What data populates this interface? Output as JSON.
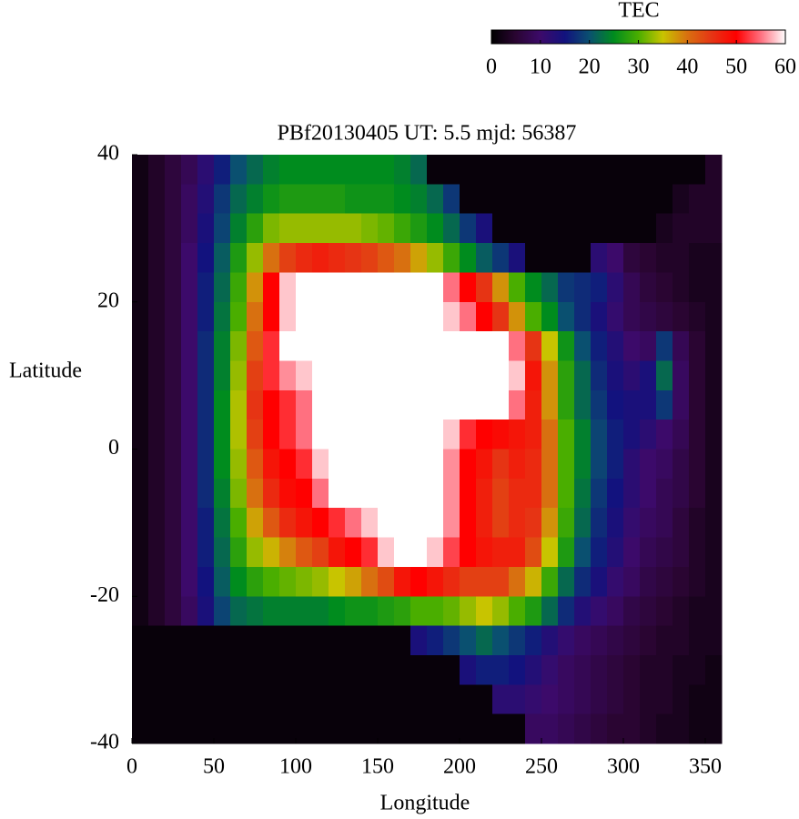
{
  "chart_data": {
    "type": "heatmap",
    "title": "PBf20130405  UT: 5.5  mjd: 56387",
    "x_label": "Longitude",
    "y_label": "Latitude",
    "colorbar_label": "TEC",
    "x": [
      5,
      15,
      25,
      35,
      45,
      55,
      65,
      75,
      85,
      95,
      105,
      115,
      125,
      135,
      145,
      155,
      165,
      175,
      185,
      195,
      205,
      215,
      225,
      235,
      245,
      255,
      265,
      275,
      285,
      295,
      305,
      315,
      325,
      335,
      345,
      355
    ],
    "y": [
      38,
      34,
      30,
      26,
      22,
      18,
      14,
      10,
      6,
      2,
      -2,
      -6,
      -10,
      -14,
      -18,
      -22,
      -26,
      -30,
      -34,
      -38
    ],
    "z": [
      [
        2,
        4,
        6,
        8,
        12,
        16,
        20,
        22,
        24,
        25,
        25,
        25,
        25,
        25,
        25,
        25,
        24,
        22,
        1,
        1,
        1,
        1,
        1,
        1,
        1,
        1,
        1,
        1,
        1,
        1,
        1,
        1,
        1,
        1,
        1,
        4
      ],
      [
        2,
        4,
        6,
        9,
        13,
        18,
        22,
        24,
        26,
        27,
        27,
        27,
        27,
        26,
        26,
        26,
        25,
        24,
        22,
        18,
        1,
        1,
        1,
        1,
        1,
        1,
        1,
        1,
        1,
        1,
        1,
        1,
        1,
        3,
        4,
        4
      ],
      [
        2,
        4,
        6,
        9,
        14,
        19,
        24,
        28,
        32,
        33,
        33,
        33,
        33,
        33,
        32,
        31,
        29,
        27,
        25,
        22,
        18,
        14,
        1,
        1,
        1,
        1,
        1,
        1,
        1,
        1,
        1,
        1,
        3,
        4,
        4,
        4
      ],
      [
        2,
        4,
        6,
        10,
        15,
        21,
        27,
        33,
        40,
        44,
        46,
        47,
        46,
        45,
        44,
        42,
        40,
        37,
        33,
        29,
        25,
        21,
        18,
        14,
        1,
        1,
        1,
        1,
        12,
        10,
        6,
        5,
        4,
        4,
        3,
        3
      ],
      [
        2,
        4,
        6,
        10,
        16,
        22,
        29,
        38,
        50,
        58,
        60,
        60,
        60,
        60,
        60,
        60,
        60,
        60,
        60,
        55,
        50,
        45,
        38,
        30,
        25,
        22,
        18,
        17,
        16,
        12,
        8,
        6,
        5,
        4,
        3,
        3
      ],
      [
        2,
        4,
        6,
        10,
        16,
        23,
        30,
        40,
        50,
        58,
        60,
        60,
        60,
        60,
        60,
        60,
        60,
        60,
        60,
        58,
        55,
        50,
        45,
        38,
        30,
        25,
        20,
        17,
        14,
        11,
        8,
        7,
        6,
        5,
        4,
        3
      ],
      [
        2,
        4,
        6,
        10,
        17,
        24,
        32,
        42,
        52,
        60,
        60,
        60,
        60,
        60,
        60,
        60,
        60,
        60,
        60,
        60,
        60,
        60,
        60,
        55,
        45,
        35,
        26,
        20,
        16,
        13,
        10,
        9,
        18,
        8,
        5,
        3
      ],
      [
        2,
        4,
        6,
        10,
        17,
        24,
        33,
        44,
        52,
        56,
        58,
        60,
        60,
        60,
        60,
        60,
        60,
        60,
        60,
        60,
        60,
        60,
        60,
        58,
        48,
        38,
        28,
        22,
        17,
        14,
        12,
        14,
        22,
        9,
        5,
        3
      ],
      [
        2,
        4,
        6,
        10,
        17,
        25,
        34,
        45,
        50,
        52,
        55,
        60,
        60,
        60,
        60,
        60,
        60,
        60,
        60,
        60,
        60,
        60,
        60,
        55,
        47,
        38,
        28,
        22,
        18,
        15,
        14,
        14,
        18,
        9,
        5,
        3
      ],
      [
        2,
        4,
        6,
        10,
        17,
        25,
        34,
        44,
        50,
        52,
        55,
        60,
        60,
        60,
        60,
        60,
        60,
        60,
        60,
        58,
        52,
        50,
        49,
        48,
        47,
        40,
        30,
        24,
        19,
        16,
        14,
        12,
        10,
        8,
        5,
        3
      ],
      [
        2,
        4,
        6,
        10,
        17,
        25,
        33,
        42,
        48,
        50,
        52,
        58,
        60,
        60,
        60,
        60,
        60,
        60,
        60,
        56,
        50,
        48,
        45,
        47,
        46,
        40,
        30,
        24,
        19,
        16,
        12,
        10,
        9,
        7,
        5,
        3
      ],
      [
        2,
        4,
        6,
        10,
        17,
        24,
        32,
        40,
        46,
        49,
        50,
        55,
        60,
        60,
        60,
        60,
        60,
        60,
        60,
        56,
        50,
        47,
        44,
        46,
        46,
        40,
        30,
        23,
        18,
        15,
        12,
        10,
        8,
        7,
        5,
        3
      ],
      [
        2,
        4,
        6,
        10,
        16,
        23,
        30,
        37,
        42,
        46,
        48,
        50,
        52,
        55,
        58,
        60,
        60,
        60,
        60,
        56,
        50,
        47,
        44,
        46,
        45,
        38,
        29,
        22,
        17,
        14,
        11,
        9,
        8,
        6,
        4,
        3
      ],
      [
        2,
        4,
        6,
        10,
        16,
        22,
        28,
        33,
        36,
        39,
        42,
        44,
        48,
        50,
        52,
        58,
        60,
        60,
        58,
        53,
        50,
        48,
        47,
        47,
        43,
        35,
        27,
        20,
        16,
        13,
        10,
        8,
        7,
        6,
        4,
        3
      ],
      [
        2,
        4,
        6,
        10,
        15,
        21,
        25,
        28,
        30,
        31,
        32,
        33,
        35,
        37,
        40,
        43,
        48,
        50,
        48,
        46,
        44,
        44,
        44,
        40,
        36,
        29,
        22,
        17,
        14,
        11,
        9,
        7,
        6,
        5,
        4,
        3
      ],
      [
        2,
        4,
        6,
        9,
        14,
        19,
        22,
        23,
        24,
        24,
        24,
        24,
        25,
        26,
        26,
        27,
        28,
        30,
        30,
        31,
        33,
        35,
        33,
        30,
        27,
        22,
        17,
        13,
        11,
        9,
        7,
        6,
        5,
        4,
        3,
        3
      ],
      [
        1,
        1,
        1,
        1,
        1,
        1,
        1,
        1,
        1,
        1,
        1,
        1,
        1,
        1,
        1,
        1,
        1,
        14,
        16,
        18,
        20,
        22,
        20,
        18,
        16,
        13,
        11,
        9,
        8,
        7,
        6,
        5,
        4,
        4,
        3,
        3
      ],
      [
        1,
        1,
        1,
        1,
        1,
        1,
        1,
        1,
        1,
        1,
        1,
        1,
        1,
        1,
        1,
        1,
        1,
        1,
        1,
        1,
        14,
        16,
        16,
        15,
        13,
        11,
        9,
        8,
        7,
        6,
        5,
        4,
        4,
        3,
        3,
        2
      ],
      [
        1,
        1,
        1,
        1,
        1,
        1,
        1,
        1,
        1,
        1,
        1,
        1,
        1,
        1,
        1,
        1,
        1,
        1,
        1,
        1,
        1,
        1,
        12,
        12,
        11,
        10,
        9,
        8,
        7,
        6,
        5,
        4,
        4,
        3,
        2,
        2
      ],
      [
        1,
        1,
        1,
        1,
        1,
        1,
        1,
        1,
        1,
        1,
        1,
        1,
        1,
        1,
        1,
        1,
        1,
        1,
        1,
        1,
        1,
        1,
        1,
        1,
        9,
        9,
        8,
        7,
        6,
        5,
        5,
        4,
        3,
        3,
        2,
        2
      ]
    ],
    "xlim": [
      0,
      360
    ],
    "xticks": [
      0,
      50,
      100,
      150,
      200,
      250,
      300,
      350
    ],
    "ylim": [
      -40,
      40
    ],
    "yticks": [
      -40,
      -20,
      0,
      20,
      40
    ],
    "clim": [
      0,
      60
    ],
    "cticks": [
      0,
      10,
      20,
      30,
      40,
      50,
      60
    ],
    "colormap": [
      "#000000",
      "#2a0532",
      "#3c0a6a",
      "#12127e",
      "#0a5070",
      "#008c1e",
      "#4aae00",
      "#c8c400",
      "#d87010",
      "#e63414",
      "#ff0000",
      "#ff7080",
      "#ffffff"
    ]
  }
}
